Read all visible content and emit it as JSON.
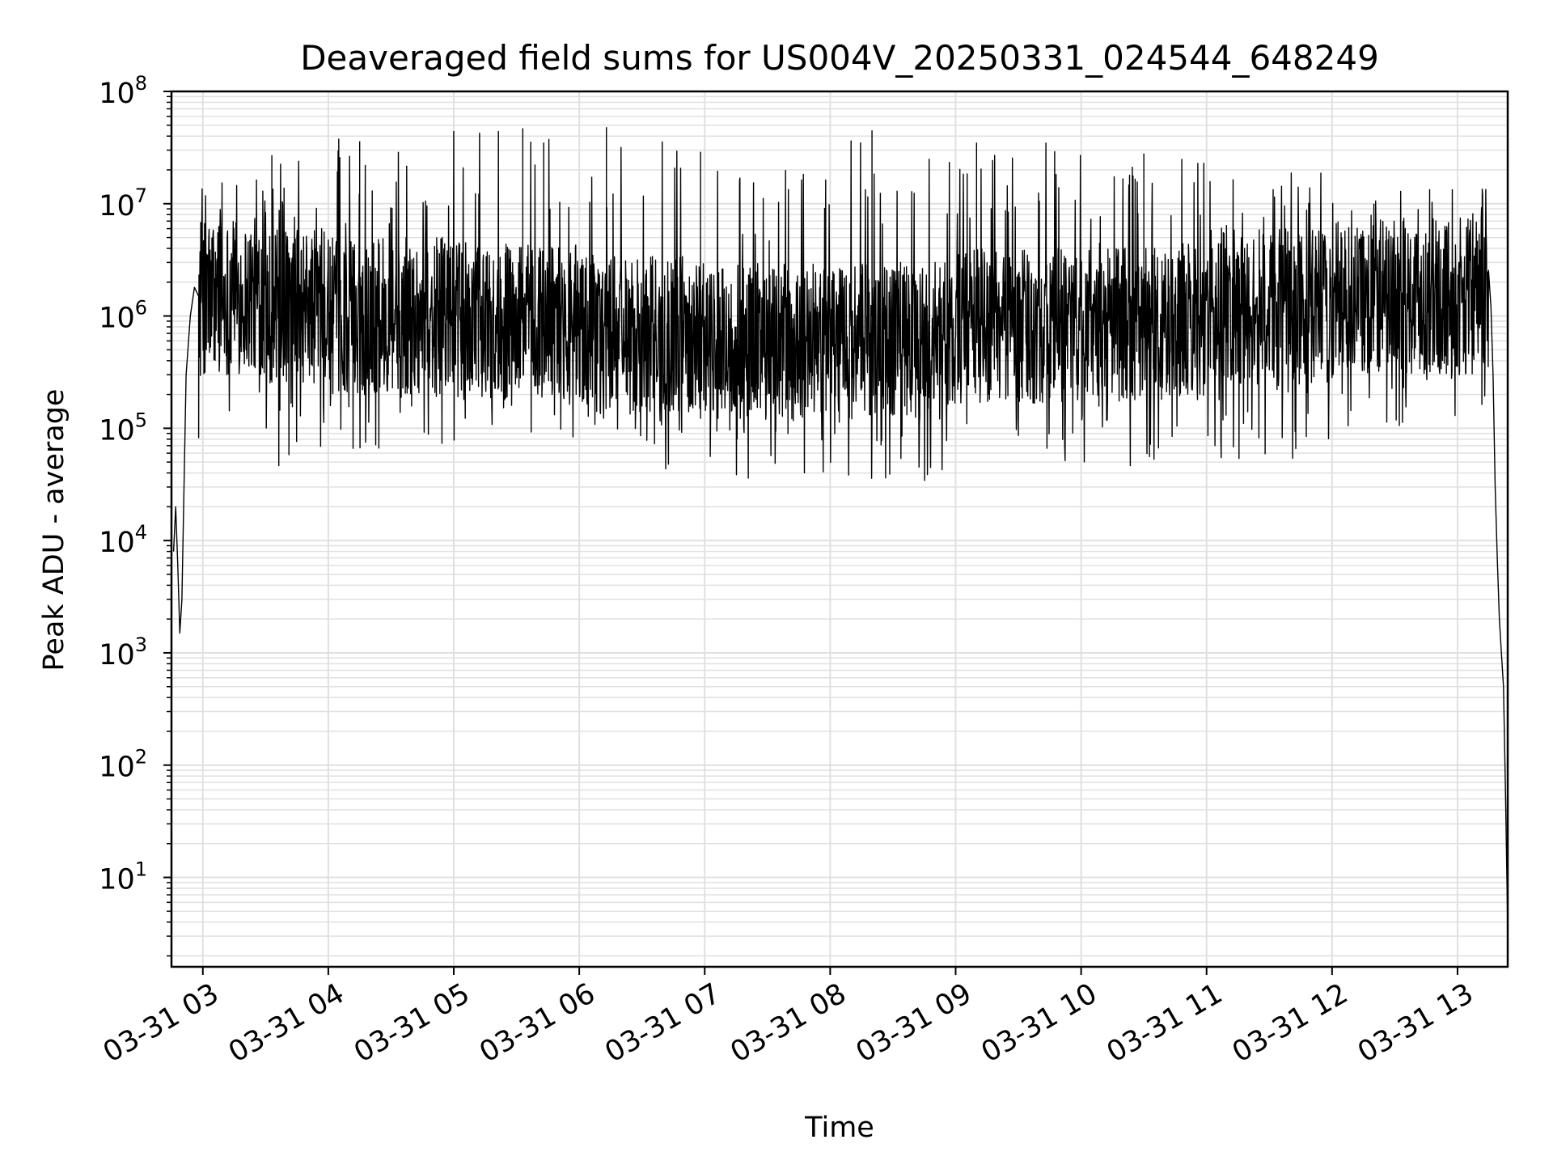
{
  "chart_data": {
    "type": "line",
    "title": "Deaveraged field sums for US004V_20250331_024544_648249",
    "xlabel": "Time",
    "ylabel": "Peak ADU - average",
    "x_ticks": [
      "03-31 03",
      "03-31 04",
      "03-31 05",
      "03-31 06",
      "03-31 07",
      "03-31 08",
      "03-31 09",
      "03-31 10",
      "03-31 11",
      "03-31 12",
      "03-31 13"
    ],
    "y_ticks": [
      {
        "base": "10",
        "exp": "1"
      },
      {
        "base": "10",
        "exp": "2"
      },
      {
        "base": "10",
        "exp": "3"
      },
      {
        "base": "10",
        "exp": "4"
      },
      {
        "base": "10",
        "exp": "5"
      },
      {
        "base": "10",
        "exp": "6"
      },
      {
        "base": "10",
        "exp": "7"
      },
      {
        "base": "10",
        "exp": "8"
      }
    ],
    "xlim": [
      "2025-03-31 02:45",
      "2025-03-31 13:24"
    ],
    "ylim": [
      1.6,
      100000000
    ],
    "yscale": "log",
    "grid": true,
    "line_color": "#000000",
    "grid_color": "#e0e0e0",
    "series": [
      {
        "points": [
          [
            "2025-03-31 02:46",
            8000
          ],
          [
            "2025-03-31 02:47",
            20000
          ],
          [
            "2025-03-31 02:48",
            6000
          ],
          [
            "2025-03-31 02:49",
            1500
          ],
          [
            "2025-03-31 02:50",
            3000
          ],
          [
            "2025-03-31 02:51",
            30000
          ],
          [
            "2025-03-31 02:52",
            300000
          ],
          [
            "2025-03-31 02:54",
            1000000
          ],
          [
            "2025-03-31 02:56",
            1800000
          ],
          [
            "2025-03-31 02:58",
            1500000
          ]
        ],
        "noisy_segments": [
          {
            "from": "2025-03-31 02:58",
            "to": "2025-03-31 03:30",
            "center": 1500000,
            "low": 80000,
            "high": 20000000
          },
          {
            "from": "2025-03-31 03:30",
            "to": "2025-03-31 04:00",
            "center": 1200000,
            "low": 40000,
            "high": 30000000
          },
          {
            "from": "2025-03-31 04:00",
            "to": "2025-03-31 05:00",
            "center": 1000000,
            "low": 60000,
            "high": 30000000
          },
          {
            "from": "2025-03-31 05:00",
            "to": "2025-03-31 06:00",
            "center": 900000,
            "low": 60000,
            "high": 45000000
          },
          {
            "from": "2025-03-31 06:00",
            "to": "2025-03-31 07:00",
            "center": 700000,
            "low": 35000,
            "high": 40000000
          },
          {
            "from": "2025-03-31 07:00",
            "to": "2025-03-31 08:00",
            "center": 600000,
            "low": 35000,
            "high": 25000000
          },
          {
            "from": "2025-03-31 08:00",
            "to": "2025-03-31 09:00",
            "center": 600000,
            "low": 28000,
            "high": 40000000
          },
          {
            "from": "2025-03-31 09:00",
            "to": "2025-03-31 10:00",
            "center": 800000,
            "low": 50000,
            "high": 35000000
          },
          {
            "from": "2025-03-31 10:00",
            "to": "2025-03-31 11:00",
            "center": 900000,
            "low": 45000,
            "high": 25000000
          },
          {
            "from": "2025-03-31 11:00",
            "to": "2025-03-31 12:00",
            "center": 1200000,
            "low": 50000,
            "high": 20000000
          },
          {
            "from": "2025-03-31 12:00",
            "to": "2025-03-31 13:15",
            "center": 1500000,
            "low": 100000,
            "high": 15000000
          }
        ],
        "tail": [
          [
            "2025-03-31 13:16",
            1200000
          ],
          [
            "2025-03-31 13:17",
            300000
          ],
          [
            "2025-03-31 13:18",
            30000
          ],
          [
            "2025-03-31 13:19",
            7000
          ],
          [
            "2025-03-31 13:20",
            2000
          ],
          [
            "2025-03-31 13:21",
            1000
          ],
          [
            "2025-03-31 13:22",
            500
          ],
          [
            "2025-03-31 13:23",
            50
          ],
          [
            "2025-03-31 13:24",
            3.5
          ]
        ],
        "spikes": [
          [
            "2025-03-31 03:33",
            27000000
          ],
          [
            "2025-03-31 04:05",
            38000000
          ],
          [
            "2025-03-31 04:15",
            36000000
          ],
          [
            "2025-03-31 05:33",
            47000000
          ],
          [
            "2025-03-31 05:43",
            35000000
          ],
          [
            "2025-03-31 06:13",
            48000000
          ],
          [
            "2025-03-31 06:58",
            29000000
          ],
          [
            "2025-03-31 08:20",
            45000000
          ],
          [
            "2025-03-31 09:10",
            35000000
          ],
          [
            "2025-03-31 10:30",
            28000000
          ],
          [
            "2025-03-31 12:20",
            10000000
          ]
        ]
      }
    ]
  }
}
